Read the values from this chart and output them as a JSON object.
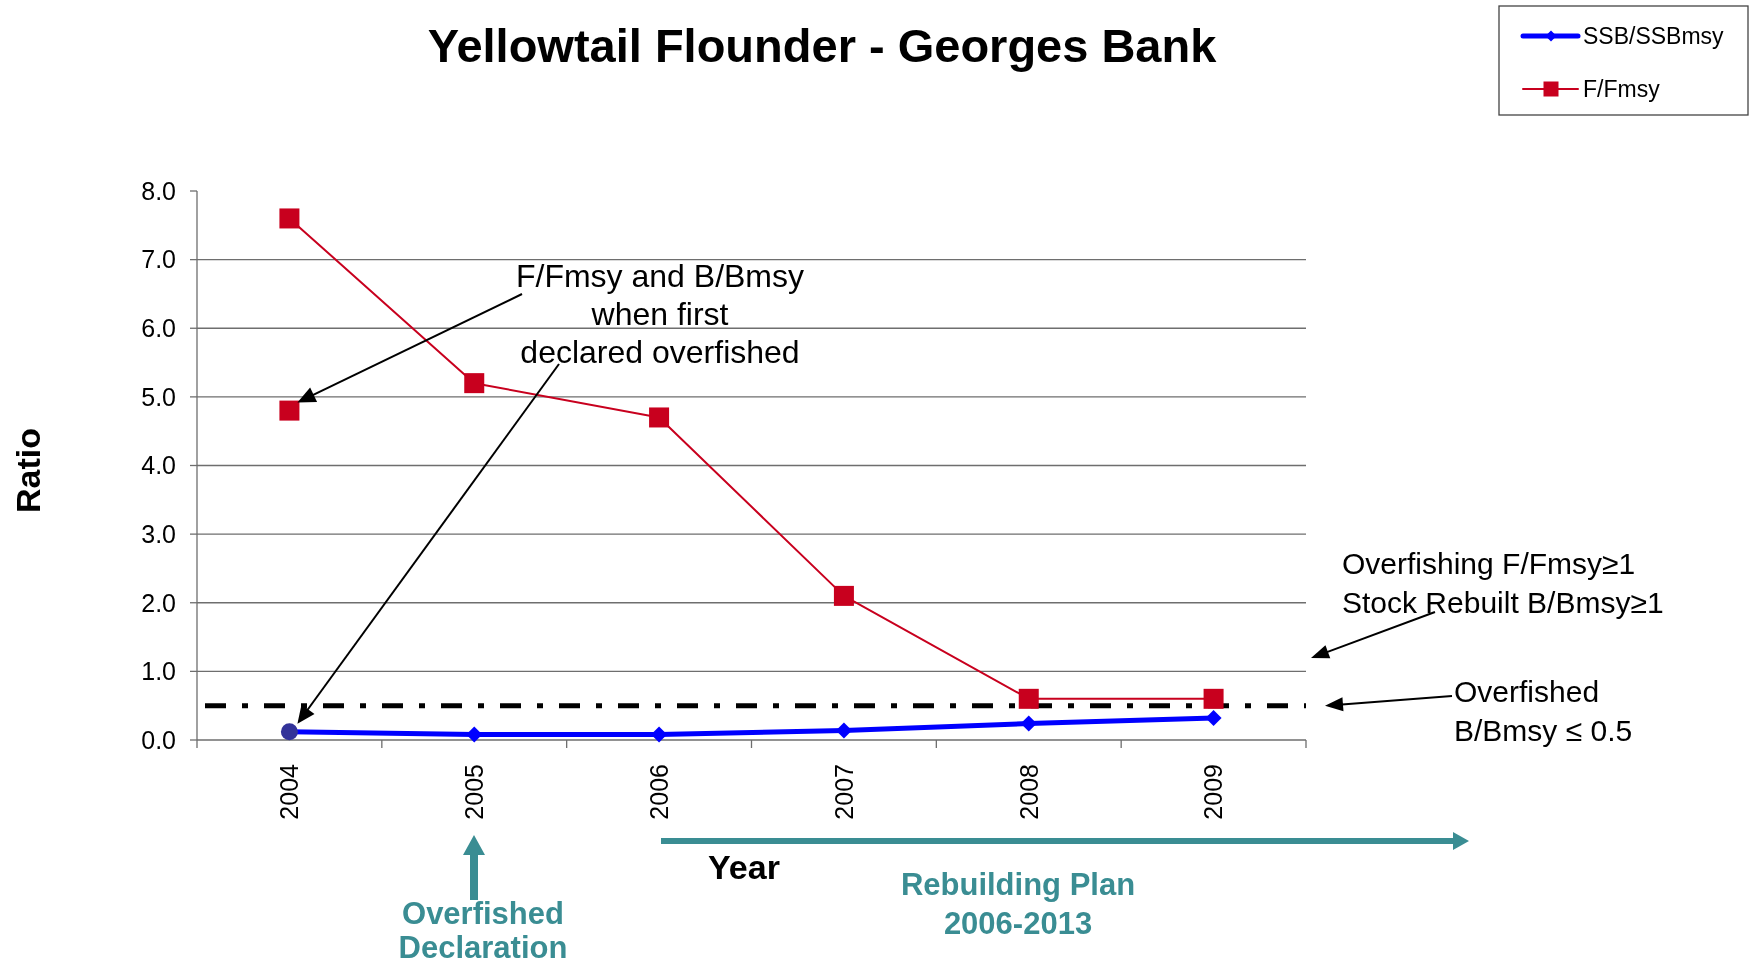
{
  "chart_data": {
    "type": "line",
    "title": "Yellowtail Flounder - Georges Bank",
    "xlabel": "Year",
    "ylabel": "Ratio",
    "categories": [
      "2004",
      "2005",
      "2006",
      "2007",
      "2008",
      "2009"
    ],
    "series": [
      {
        "name": "SSB/SSBmsy",
        "color": "#0000ff",
        "marker": "diamond",
        "values": [
          0.12,
          0.08,
          0.08,
          0.14,
          0.24,
          0.32
        ]
      },
      {
        "name": "F/Fmsy",
        "color": "#c8001e",
        "marker": "square",
        "values": [
          7.6,
          5.2,
          4.7,
          2.1,
          0.6,
          0.6
        ]
      },
      {
        "type": "scatter",
        "color": "#c8001e",
        "marker": "square",
        "values": [
          4.8,
          null,
          null,
          null,
          null,
          null
        ]
      },
      {
        "type": "scatter",
        "color": "#333399",
        "marker": "circle",
        "values": [
          0.12,
          null,
          null,
          null,
          null,
          null
        ]
      }
    ],
    "ylim": [
      0,
      8
    ],
    "yticks": [
      {
        "value": 0,
        "label": "0.0"
      },
      {
        "value": 1,
        "label": "1.0"
      },
      {
        "value": 2,
        "label": "2.0"
      },
      {
        "value": 3,
        "label": "3.0"
      },
      {
        "value": 4,
        "label": "4.0"
      },
      {
        "value": 5,
        "label": "5.0"
      },
      {
        "value": 6,
        "label": "6.0"
      },
      {
        "value": 7,
        "label": "7.0"
      },
      {
        "value": 8,
        "label": "8.0"
      }
    ],
    "grid": "y",
    "legend": "top right",
    "ref_lines": [
      {
        "axis": "y",
        "value": 0.5,
        "color": "#000000",
        "line_style": "dashdot"
      }
    ],
    "annotations": [
      "F/Fmsy and B/Bmsy\nwhen first\ndeclared overfished",
      "Overfishing F/Fmsy≥1\nStock Rebuilt B/Bmsy≥1",
      "Overfished\nB/Bmsy ≤ 0.5",
      "Overfished\nDeclaration",
      "Rebuilding Plan\n2006-2013"
    ]
  }
}
